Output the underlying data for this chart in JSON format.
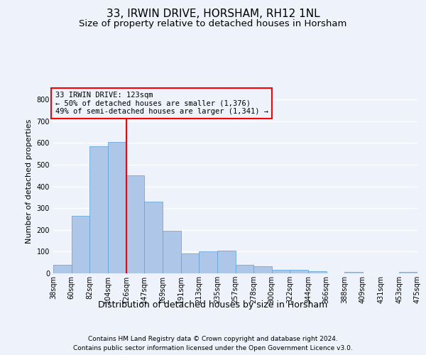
{
  "title1": "33, IRWIN DRIVE, HORSHAM, RH12 1NL",
  "title2": "Size of property relative to detached houses in Horsham",
  "xlabel": "Distribution of detached houses by size in Horsham",
  "ylabel": "Number of detached properties",
  "footnote1": "Contains HM Land Registry data © Crown copyright and database right 2024.",
  "footnote2": "Contains public sector information licensed under the Open Government Licence v3.0.",
  "annotation_line1": "33 IRWIN DRIVE: 123sqm",
  "annotation_line2": "← 50% of detached houses are smaller (1,376)",
  "annotation_line3": "49% of semi-detached houses are larger (1,341) →",
  "bar_values": [
    38,
    265,
    585,
    605,
    450,
    330,
    195,
    90,
    100,
    105,
    38,
    33,
    15,
    15,
    10,
    0,
    5,
    0,
    0,
    5
  ],
  "categories": [
    "38sqm",
    "60sqm",
    "82sqm",
    "104sqm",
    "126sqm",
    "147sqm",
    "169sqm",
    "191sqm",
    "213sqm",
    "235sqm",
    "257sqm",
    "278sqm",
    "300sqm",
    "322sqm",
    "344sqm",
    "366sqm",
    "388sqm",
    "409sqm",
    "431sqm",
    "453sqm",
    "475sqm"
  ],
  "bar_color": "#aec6e8",
  "bar_edge_color": "#5a9fd4",
  "vline_color": "red",
  "vline_linewidth": 1.5,
  "annotation_box_color": "red",
  "ylim": [
    0,
    850
  ],
  "yticks": [
    0,
    100,
    200,
    300,
    400,
    500,
    600,
    700,
    800
  ],
  "background_color": "#eef2fb",
  "axes_background": "#eef2fb",
  "grid_color": "white",
  "title1_fontsize": 11,
  "title2_fontsize": 9.5,
  "xlabel_fontsize": 9,
  "ylabel_fontsize": 8,
  "tick_fontsize": 7,
  "annotation_fontsize": 7.5,
  "footnote_fontsize": 6.5
}
